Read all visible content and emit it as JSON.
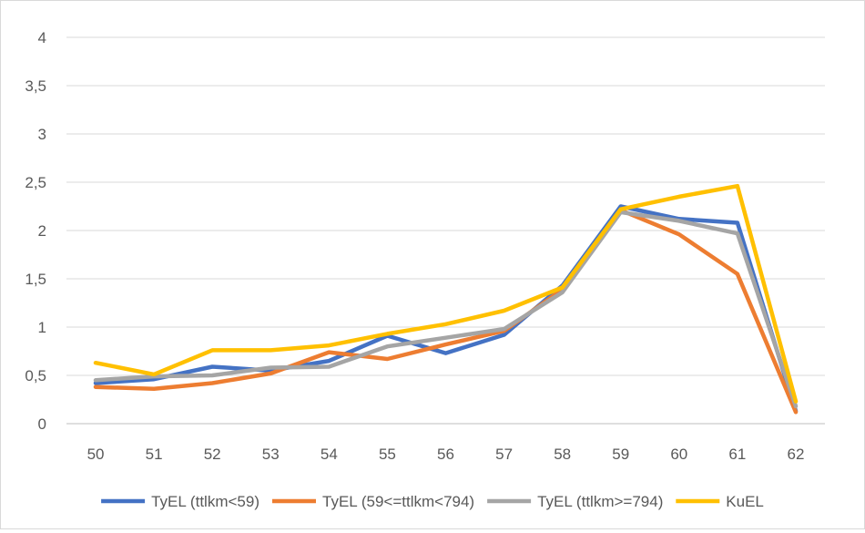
{
  "chart_data": {
    "type": "line",
    "title": "",
    "xlabel": "",
    "ylabel": "",
    "categories": [
      "50",
      "51",
      "52",
      "53",
      "54",
      "55",
      "56",
      "57",
      "58",
      "59",
      "60",
      "61",
      "62"
    ],
    "y_ticks": [
      "0",
      "0,5",
      "1",
      "1,5",
      "2",
      "2,5",
      "3",
      "3,5",
      "4"
    ],
    "ylim": [
      0,
      4
    ],
    "grid": true,
    "legend_position": "bottom",
    "series": [
      {
        "name": "TyEL (ttlkm<59)",
        "color": "#4472C4",
        "values": [
          0.42,
          0.46,
          0.59,
          0.55,
          0.65,
          0.91,
          0.73,
          0.92,
          1.43,
          2.25,
          2.12,
          2.08,
          0.13
        ]
      },
      {
        "name": "TyEL (59<=ttlkm<794)",
        "color": "#ED7D31",
        "values": [
          0.38,
          0.36,
          0.42,
          0.52,
          0.74,
          0.67,
          0.82,
          0.96,
          1.39,
          2.21,
          1.96,
          1.55,
          0.12
        ]
      },
      {
        "name": "TyEL (ttlkm>=794)",
        "color": "#A5A5A5",
        "values": [
          0.45,
          0.49,
          0.5,
          0.58,
          0.59,
          0.8,
          0.89,
          0.98,
          1.36,
          2.19,
          2.1,
          1.97,
          0.18
        ]
      },
      {
        "name": "KuEL",
        "color": "#FFC000",
        "values": [
          0.63,
          0.51,
          0.76,
          0.76,
          0.81,
          0.93,
          1.03,
          1.17,
          1.41,
          2.22,
          2.35,
          2.46,
          0.23
        ]
      }
    ]
  }
}
